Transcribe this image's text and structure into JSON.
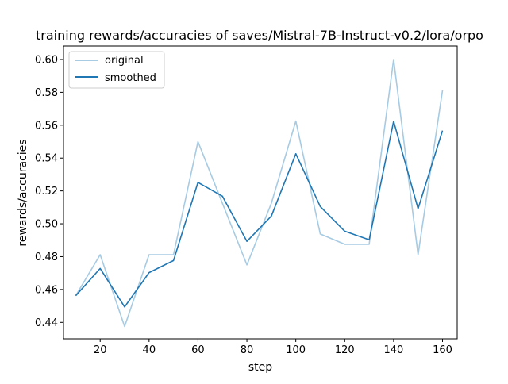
{
  "chart_data": {
    "type": "line",
    "title": "training rewards/accuracies of saves/Mistral-7B-Instruct-v0.2/lora/orpo",
    "xlabel": "step",
    "ylabel": "rewards/accuracies",
    "x": [
      10,
      20,
      30,
      40,
      50,
      60,
      70,
      80,
      90,
      100,
      110,
      120,
      130,
      140,
      150,
      160
    ],
    "xlim": [
      5,
      166
    ],
    "ylim": [
      0.43,
      0.6082
    ],
    "xticks": [
      20,
      40,
      60,
      80,
      100,
      120,
      140,
      160
    ],
    "yticks": [
      0.44,
      0.46,
      0.48,
      0.5,
      0.52,
      0.54,
      0.56,
      0.58,
      0.6
    ],
    "xtick_labels": [
      "20",
      "40",
      "60",
      "80",
      "100",
      "120",
      "140",
      "160"
    ],
    "ytick_labels": [
      "0.44",
      "0.46",
      "0.48",
      "0.50",
      "0.52",
      "0.54",
      "0.56",
      "0.58",
      "0.60"
    ],
    "grid": false,
    "legend": "top-left",
    "series": [
      {
        "name": "original",
        "color": "#a6cbe3",
        "values": [
          0.4562,
          0.4812,
          0.4375,
          0.4812,
          0.4812,
          0.55,
          0.5125,
          0.475,
          0.5125,
          0.5625,
          0.4938,
          0.4875,
          0.4875,
          0.6,
          0.4812,
          0.5812
        ]
      },
      {
        "name": "smoothed",
        "color": "#1f77b4",
        "values": [
          0.4562,
          0.4728,
          0.4494,
          0.4703,
          0.4776,
          0.5252,
          0.5168,
          0.4893,
          0.5047,
          0.5426,
          0.5105,
          0.4955,
          0.4902,
          0.5624,
          0.5092,
          0.5567
        ]
      }
    ]
  }
}
